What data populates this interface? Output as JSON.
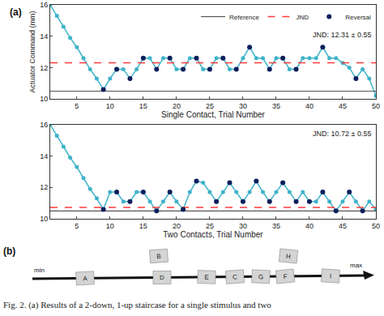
{
  "panel_labels": [
    "(a)",
    "(b)"
  ],
  "chart_data": [
    {
      "type": "line",
      "x_label": "Single Contact, Trial Number",
      "y_label": "Actuator Command (mm)",
      "x": [
        1,
        2,
        3,
        4,
        5,
        6,
        7,
        8,
        9,
        10,
        11,
        12,
        13,
        14,
        15,
        16,
        17,
        18,
        19,
        20,
        21,
        22,
        23,
        24,
        25,
        26,
        27,
        28,
        29,
        30,
        31,
        32,
        33,
        34,
        35,
        36,
        37,
        38,
        39,
        40,
        41,
        42,
        43,
        44,
        45,
        46,
        47,
        48,
        49,
        50
      ],
      "series": [
        {
          "color": "#3fb3c9",
          "marker": "circle",
          "line_style": "solid",
          "values": [
            16.0,
            15.3,
            14.6,
            13.9,
            13.3,
            12.6,
            11.9,
            11.3,
            10.6,
            11.3,
            11.9,
            11.9,
            11.3,
            11.9,
            12.6,
            12.6,
            11.9,
            12.6,
            12.6,
            11.9,
            11.9,
            12.6,
            12.6,
            11.9,
            11.9,
            12.6,
            12.6,
            11.9,
            11.9,
            12.6,
            13.3,
            12.6,
            12.6,
            11.9,
            12.6,
            12.6,
            11.9,
            11.9,
            12.6,
            12.6,
            12.6,
            13.3,
            12.6,
            12.6,
            12.3,
            12.0,
            11.3,
            11.9,
            11.3,
            10.2
          ]
        }
      ],
      "reversals": [
        9,
        11,
        13,
        15,
        17,
        19,
        21,
        23,
        25,
        27,
        29,
        31,
        34,
        36,
        38,
        42,
        47
      ],
      "reversal": {
        "name": "Reversal",
        "color": "#0d1f5c",
        "marker": "circle"
      },
      "reference": {
        "name": "Reference",
        "value": 10.5,
        "color": "#555555",
        "line_style": "solid"
      },
      "jnd": {
        "name": "JND",
        "value": 12.31,
        "color": "#ff3b3b",
        "line_style": "dash"
      },
      "annotation": "JND: 12.31 ± 0.55",
      "xlim": [
        1,
        50
      ],
      "xticks": [
        5,
        10,
        15,
        20,
        25,
        30,
        35,
        40,
        45,
        50
      ],
      "ylim": [
        10,
        16
      ],
      "yticks": [
        10,
        12,
        14,
        16
      ],
      "legend": "upper right",
      "grid": false
    },
    {
      "type": "line",
      "x_label": "Two Contacts, Trial Number",
      "x": [
        1,
        2,
        3,
        4,
        5,
        6,
        7,
        8,
        9,
        10,
        11,
        12,
        13,
        14,
        15,
        16,
        17,
        18,
        19,
        20,
        21,
        22,
        23,
        24,
        25,
        26,
        27,
        28,
        29,
        30,
        31,
        32,
        33,
        34,
        35,
        36,
        37,
        38,
        39,
        40,
        41,
        42,
        43,
        44,
        45,
        46,
        47,
        48,
        49,
        50
      ],
      "series": [
        {
          "color": "#3fb3c9",
          "marker": "circle",
          "line_style": "solid",
          "values": [
            16.0,
            15.3,
            14.6,
            13.9,
            13.3,
            12.6,
            11.9,
            11.3,
            10.6,
            11.7,
            11.7,
            11.1,
            11.1,
            11.7,
            11.7,
            11.1,
            10.5,
            11.1,
            11.7,
            11.1,
            10.6,
            11.7,
            12.4,
            12.3,
            11.7,
            11.1,
            11.7,
            12.3,
            11.7,
            11.1,
            11.7,
            12.4,
            11.7,
            11.1,
            11.7,
            12.3,
            11.7,
            11.1,
            11.7,
            11.1,
            11.1,
            11.7,
            11.1,
            10.5,
            11.1,
            11.7,
            11.1,
            10.5,
            11.1,
            10.6
          ]
        }
      ],
      "reversals": [
        9,
        11,
        13,
        15,
        17,
        19,
        21,
        23,
        26,
        28,
        30,
        32,
        34,
        36,
        38,
        40,
        42,
        44,
        46,
        48
      ],
      "reversal": {
        "color": "#0d1f5c",
        "marker": "circle"
      },
      "reference": {
        "value": 10.5,
        "color": "#555555",
        "line_style": "solid"
      },
      "jnd": {
        "value": 10.72,
        "color": "#ff3b3b",
        "line_style": "dash"
      },
      "annotation": "JND: 10.72 ± 0.55",
      "xlim": [
        1,
        50
      ],
      "xticks": [
        5,
        10,
        15,
        20,
        25,
        30,
        35,
        40,
        45,
        50
      ],
      "ylim": [
        10,
        16
      ],
      "yticks": [
        10,
        12,
        14,
        16
      ],
      "grid": false
    }
  ],
  "diagram": {
    "axis_min": "min",
    "axis_max": "max",
    "on_axis": [
      "A",
      "D",
      "E",
      "C",
      "G",
      "F",
      "I"
    ],
    "above_axis": [
      {
        "label": "B",
        "over": "D"
      },
      {
        "label": "H",
        "over": "F"
      }
    ]
  },
  "caption": "Fig. 2.  (a) Results of a 2-down, 1-up staircase for a single stimulus and two"
}
